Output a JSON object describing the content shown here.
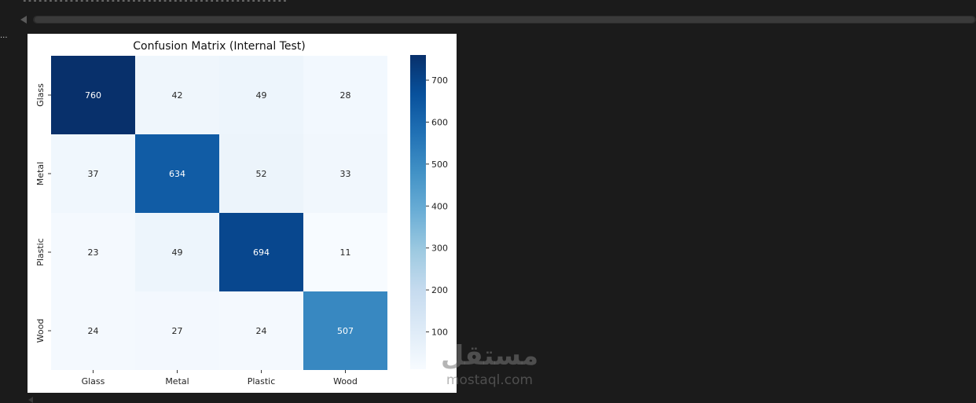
{
  "output": {
    "dashes": "--------------------------------------------------------",
    "marker": "..."
  },
  "watermark": {
    "arabic": "مستقل",
    "latin": "mostaql.com"
  },
  "chart_data": {
    "type": "heatmap",
    "title": "Confusion Matrix (Internal Test)",
    "xlabel": "",
    "ylabel": "",
    "x_categories": [
      "Glass",
      "Metal",
      "Plastic",
      "Wood"
    ],
    "y_categories": [
      "Glass",
      "Metal",
      "Plastic",
      "Wood"
    ],
    "values": [
      [
        760,
        42,
        49,
        28
      ],
      [
        37,
        634,
        52,
        33
      ],
      [
        23,
        49,
        694,
        11
      ],
      [
        24,
        27,
        24,
        507
      ]
    ],
    "colormap": "Blues",
    "vmin": 11,
    "vmax": 760,
    "colorbar_ticks": [
      100,
      200,
      300,
      400,
      500,
      600,
      700
    ],
    "colors": {
      "low": "#f7fbff",
      "high": "#08306b"
    }
  }
}
